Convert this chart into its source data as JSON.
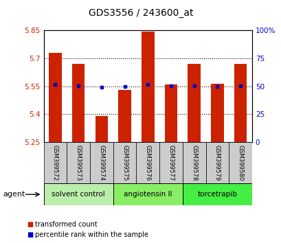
{
  "title": "GDS3556 / 243600_at",
  "samples": [
    "GSM399572",
    "GSM399573",
    "GSM399574",
    "GSM399575",
    "GSM399576",
    "GSM399577",
    "GSM399578",
    "GSM399579",
    "GSM399580"
  ],
  "bar_values": [
    5.73,
    5.67,
    5.39,
    5.53,
    5.845,
    5.56,
    5.67,
    5.565,
    5.67
  ],
  "percentile_values": [
    5.558,
    5.553,
    5.544,
    5.548,
    5.56,
    5.553,
    5.553,
    5.549,
    5.553
  ],
  "ymin": 5.25,
  "ymax": 5.85,
  "y2min": 0,
  "y2max": 100,
  "yticks": [
    5.25,
    5.4,
    5.55,
    5.7,
    5.85
  ],
  "ytick_labels": [
    "5.25",
    "5.4",
    "5.55",
    "5.7",
    "5.85"
  ],
  "y2ticks": [
    0,
    25,
    50,
    75,
    100
  ],
  "y2tick_labels": [
    "0",
    "25",
    "50",
    "75",
    "100%"
  ],
  "hlines": [
    5.4,
    5.55,
    5.7
  ],
  "bar_color": "#cc2200",
  "percentile_color": "#0000cc",
  "groups": [
    {
      "label": "solvent control",
      "samples": [
        0,
        1,
        2
      ],
      "color": "#bbeeaa"
    },
    {
      "label": "angiotensin II",
      "samples": [
        3,
        4,
        5
      ],
      "color": "#88ee66"
    },
    {
      "label": "torcetrapib",
      "samples": [
        6,
        7,
        8
      ],
      "color": "#44ee44"
    }
  ],
  "agent_label": "agent",
  "legend_bar_label": "transformed count",
  "legend_pct_label": "percentile rank within the sample",
  "sample_label_bg": "#cccccc",
  "bar_width": 0.55
}
